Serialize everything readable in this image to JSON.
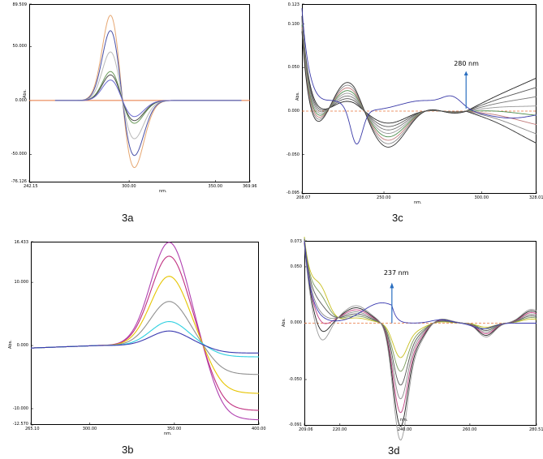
{
  "captions": {
    "a": "3a",
    "b": "3b",
    "c": "3c",
    "d": "3d"
  },
  "chart_data": [
    {
      "id": "3a",
      "type": "line",
      "xlabel": "nm.",
      "ylabel": "Abs.",
      "xlim": [
        242.15,
        369.96
      ],
      "ylim": [
        -76.126,
        89.509
      ],
      "x_ticks": [
        "242.15",
        "300.00",
        "350.00",
        "369.96"
      ],
      "x_tick_values": [
        242.15,
        300.0,
        350.0,
        369.96
      ],
      "y_ticks": [
        "89.509",
        "50.000",
        "0.000",
        "-50.000",
        "-76.126"
      ],
      "y_tick_values": [
        89.509,
        50.0,
        0.0,
        -50.0,
        -76.126
      ],
      "baseline": {
        "y": 0,
        "color": "#e8743b"
      },
      "series": [
        {
          "color": "#e6a772",
          "amp": 1.0
        },
        {
          "color": "#4a52a8",
          "amp": 0.82
        },
        {
          "color": "#b8b8b8",
          "amp": 0.57
        },
        {
          "color": "#6a9a5a",
          "amp": 0.34
        },
        {
          "color": "#4c4c4c",
          "amp": 0.3
        },
        {
          "color": "#6a6ad0",
          "amp": 0.24
        }
      ],
      "shape": {
        "peak_x": 290,
        "peak_y": 88,
        "trough_x": 302,
        "trough_y": -67
      }
    },
    {
      "id": "3b",
      "type": "line",
      "xlabel": "nm.",
      "ylabel": "Abs.",
      "xlim": [
        265.1,
        400.0
      ],
      "ylim": [
        -12.57,
        16.433
      ],
      "x_ticks": [
        "265.10",
        "300.00",
        "350.00",
        "400.00"
      ],
      "x_tick_values": [
        265.1,
        300.0,
        350.0,
        400.0
      ],
      "y_ticks": [
        "16.433",
        "10.000",
        "0.000",
        "-10.000",
        "-12.570"
      ],
      "y_tick_values": [
        16.433,
        10.0,
        0.0,
        -10.0,
        -12.57
      ],
      "series": [
        {
          "color": "#b040b0",
          "peak": 16.4,
          "end": -11.8
        },
        {
          "color": "#c03080",
          "peak": 14.2,
          "end": -10.3
        },
        {
          "color": "#e6c400",
          "peak": 11.0,
          "end": -7.6
        },
        {
          "color": "#909090",
          "peak": 7.0,
          "end": -4.6
        },
        {
          "color": "#2fd0e0",
          "peak": 3.8,
          "end": -1.8
        },
        {
          "color": "#3a3ab0",
          "peak": 2.3,
          "end": -1.2
        }
      ],
      "shape": {
        "peak_x": 347,
        "cross_x": 369
      }
    },
    {
      "id": "3c",
      "type": "line",
      "xlabel": "nm.",
      "ylabel": "Abs.",
      "xlim": [
        208.07,
        328.01
      ],
      "ylim": [
        -0.095,
        0.123
      ],
      "x_ticks": [
        "208.07",
        "250.00",
        "300.00",
        "328.01"
      ],
      "x_tick_values": [
        208.07,
        250.0,
        300.0,
        328.01
      ],
      "y_ticks": [
        "0.123",
        "0.100",
        "0.050",
        "0.000",
        "-0.050",
        "-0.095"
      ],
      "y_tick_values": [
        0.123,
        0.1,
        0.05,
        0.0,
        -0.05,
        -0.095
      ],
      "annotation": {
        "text": "280 nm",
        "x": 292
      },
      "baseline": {
        "y": 0,
        "color": "#e8743b"
      }
    },
    {
      "id": "3d",
      "type": "line",
      "xlabel": "nm.",
      "ylabel": "Abs.",
      "xlim": [
        209.06,
        280.51
      ],
      "ylim": [
        -0.091,
        0.073
      ],
      "x_ticks": [
        "209.06",
        "220.00",
        "240.00",
        "260.00",
        "280.51"
      ],
      "x_tick_values": [
        209.06,
        220.0,
        240.0,
        260.0,
        280.51
      ],
      "y_ticks": [
        "0.073",
        "0.050",
        "0.000",
        "-0.050",
        "-0.091"
      ],
      "y_tick_values": [
        0.073,
        0.05,
        0.0,
        -0.05,
        -0.091
      ],
      "annotation": {
        "text": "237 nm",
        "x": 236
      },
      "baseline": {
        "y": 0,
        "color": "#e8743b"
      }
    }
  ]
}
